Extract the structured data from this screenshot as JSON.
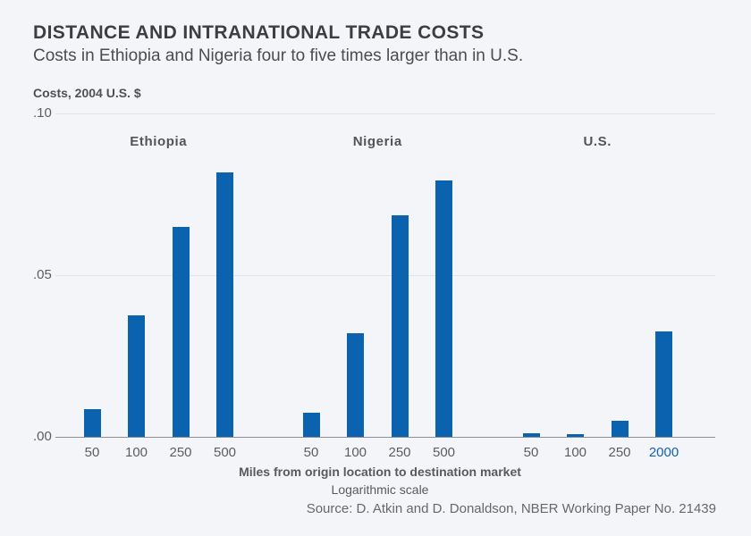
{
  "header": {
    "title": "DISTANCE AND INTRANATIONAL TRADE COSTS",
    "subtitle": "Costs in Ethiopia and Nigeria four to five times larger than in U.S."
  },
  "chart_data": {
    "type": "bar",
    "title": "DISTANCE AND INTRANATIONAL TRADE COSTS",
    "subtitle": "Costs in Ethiopia and Nigeria four to five times larger than in U.S.",
    "unit_label": "Costs, 2004 U.S. $",
    "xlabel": "Miles from origin location to destination market",
    "xlabel_note": "Logarithmic scale",
    "ylabel": "",
    "ylim": [
      0,
      0.1
    ],
    "grid": "horizontal",
    "legend": "none",
    "bar_color": "#0b62af",
    "highlight_tick_color": "#1061b0",
    "yticks": [
      {
        "value": 0.1,
        "label": ".10"
      },
      {
        "value": 0.05,
        "label": ".05"
      },
      {
        "value": 0.0,
        "label": ".00"
      }
    ],
    "groups": [
      {
        "name": "Ethiopia",
        "categories": [
          "50",
          "100",
          "250",
          "500"
        ],
        "values": [
          0.0086,
          0.0376,
          0.0649,
          0.0818
        ]
      },
      {
        "name": "Nigeria",
        "categories": [
          "50",
          "100",
          "250",
          "500"
        ],
        "values": [
          0.0075,
          0.032,
          0.0685,
          0.0793
        ]
      },
      {
        "name": "U.S.",
        "categories": [
          "50",
          "100",
          "250",
          "2000"
        ],
        "values": [
          0.0012,
          0.0009,
          0.005,
          0.0326
        ],
        "highlighted_category": "2000"
      }
    ]
  },
  "footer": {
    "source": "Source: D. Atkin and D. Donaldson, NBER Working Paper No. 21439"
  }
}
